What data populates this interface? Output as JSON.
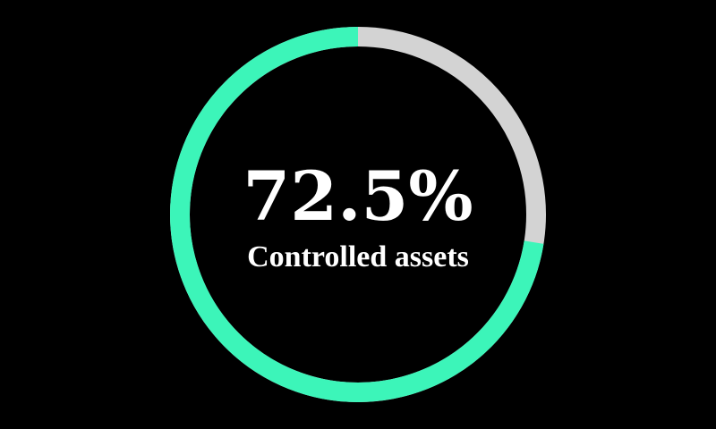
{
  "chart_data": {
    "type": "gauge",
    "values": [
      72.5
    ],
    "value_labels": [
      "72.5%"
    ],
    "label": "Controlled assets",
    "ylim": [
      0,
      100
    ],
    "color": "#3cf5b9",
    "track_color": "#d3d3d3"
  }
}
